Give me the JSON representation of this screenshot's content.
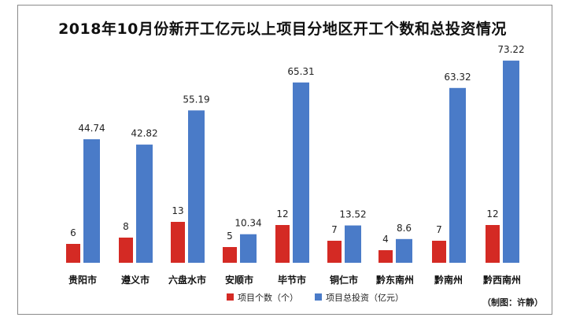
{
  "chart_data": {
    "type": "bar",
    "title": "2018年10月份新开工亿元以上项目分地区开工个数和总投资情况",
    "categories": [
      "贵阳市",
      "遵义市",
      "六盘水市",
      "安顺市",
      "毕节市",
      "铜仁市",
      "黔东南州",
      "黔南州",
      "黔西南州"
    ],
    "series": [
      {
        "name": "项目个数（个）",
        "color": "#d42a24",
        "values": [
          6,
          8,
          13,
          5,
          12,
          7,
          4,
          7,
          12
        ]
      },
      {
        "name": "项目总投资（亿元）",
        "color": "#4a7bc8",
        "values": [
          44.74,
          42.82,
          55.19,
          10.34,
          65.31,
          13.52,
          8.6,
          63.32,
          73.22
        ]
      }
    ],
    "value_labels": [
      [
        "6",
        "8",
        "13",
        "5",
        "12",
        "7",
        "4",
        "7",
        "12"
      ],
      [
        "44.74",
        "42.82",
        "55.19",
        "10.34",
        "65.31",
        "13.52",
        "8.6",
        "63.32",
        "73.22"
      ]
    ],
    "legend_position": "bottom",
    "grid": false
  },
  "credit": "（制图：许静）"
}
